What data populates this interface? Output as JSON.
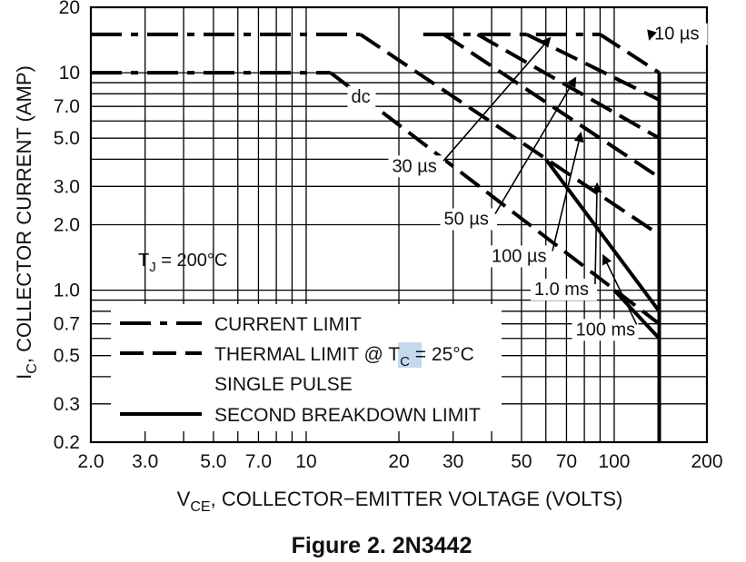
{
  "chart_data": {
    "type": "line",
    "title": "",
    "caption": "Figure 2. 2N3442",
    "xlabel": {
      "main": "V",
      "sub": "CE",
      "rest": ", COLLECTOR−EMITTER VOLTAGE (VOLTS)"
    },
    "ylabel": {
      "main": "I",
      "sub": "C",
      "rest": ", COLLECTOR CURRENT (AMP)"
    },
    "x_scale": "log",
    "y_scale": "log",
    "xlim": [
      2,
      200
    ],
    "ylim": [
      0.2,
      20
    ],
    "x_ticks": [
      {
        "value": 2,
        "label": "2.0"
      },
      {
        "value": 3,
        "label": "3.0"
      },
      {
        "value": 5,
        "label": "5.0"
      },
      {
        "value": 7,
        "label": "7.0"
      },
      {
        "value": 10,
        "label": "10"
      },
      {
        "value": 20,
        "label": "20"
      },
      {
        "value": 30,
        "label": "30"
      },
      {
        "value": 50,
        "label": "50"
      },
      {
        "value": 70,
        "label": "70"
      },
      {
        "value": 100,
        "label": "100"
      },
      {
        "value": 200,
        "label": "200"
      }
    ],
    "y_ticks": [
      {
        "value": 0.2,
        "label": "0.2"
      },
      {
        "value": 0.3,
        "label": "0.3"
      },
      {
        "value": 0.5,
        "label": "0.5"
      },
      {
        "value": 0.7,
        "label": "0.7"
      },
      {
        "value": 1,
        "label": "1.0"
      },
      {
        "value": 2,
        "label": "2.0"
      },
      {
        "value": 3,
        "label": "3.0"
      },
      {
        "value": 5,
        "label": "5.0"
      },
      {
        "value": 7,
        "label": "7.0"
      },
      {
        "value": 10,
        "label": "10"
      },
      {
        "value": 20,
        "label": "20"
      }
    ],
    "grid": true,
    "series": [
      {
        "kind": "current",
        "points": [
          [
            2,
            15
          ],
          [
            15,
            15
          ]
        ]
      },
      {
        "kind": "current",
        "points": [
          [
            2,
            10
          ],
          [
            12,
            10
          ]
        ]
      },
      {
        "kind": "current",
        "points": [
          [
            24,
            15
          ],
          [
            90,
            15
          ]
        ]
      },
      {
        "kind": "thermal",
        "points": [
          [
            15,
            15
          ],
          [
            140,
            1.8
          ]
        ]
      },
      {
        "kind": "thermal",
        "points": [
          [
            12,
            10
          ],
          [
            140,
            0.7
          ]
        ]
      },
      {
        "kind": "thermal",
        "points": [
          [
            28,
            15
          ],
          [
            140,
            3.3
          ]
        ]
      },
      {
        "kind": "thermal",
        "points": [
          [
            36,
            15
          ],
          [
            140,
            5.0
          ]
        ]
      },
      {
        "kind": "thermal",
        "points": [
          [
            52,
            15
          ],
          [
            140,
            7.5
          ]
        ]
      },
      {
        "kind": "thermal",
        "points": [
          [
            90,
            15
          ],
          [
            140,
            10
          ]
        ]
      },
      {
        "kind": "breakdown",
        "points": [
          [
            60,
            4.0
          ],
          [
            140,
            0.8
          ]
        ]
      },
      {
        "kind": "breakdown",
        "points": [
          [
            140,
            10
          ],
          [
            140,
            0.2
          ]
        ]
      },
      {
        "kind": "breakdown",
        "points": [
          [
            100,
            1.0
          ],
          [
            140,
            0.6
          ]
        ]
      }
    ],
    "annotations": [
      {
        "text": "10 µs",
        "at": [
          135,
          14.2
        ],
        "arrow_to": [
          130,
          14.2
        ]
      },
      {
        "text": "dc",
        "at": [
          14,
          7.3
        ],
        "arrow_to": null
      },
      {
        "text": "30 µs",
        "at": [
          19,
          3.5
        ],
        "arrow_to": [
          62,
          14.5
        ]
      },
      {
        "text": "50 µs",
        "at": [
          28,
          2.0
        ],
        "arrow_to": [
          75,
          9.5
        ]
      },
      {
        "text": "100 µs",
        "at": [
          40,
          1.35
        ],
        "arrow_to": [
          78,
          5.3
        ]
      },
      {
        "text": "1.0 ms",
        "at": [
          55,
          0.95
        ],
        "arrow_to": [
          88,
          3.1
        ]
      },
      {
        "text": "100 ms",
        "at": [
          75,
          0.62
        ],
        "arrow_to": [
          92,
          1.45
        ]
      }
    ],
    "tj_label": {
      "main": "T",
      "sub": "J",
      "rest": " = 200°C"
    },
    "legend": [
      {
        "kind": "current",
        "text": "CURRENT LIMIT"
      },
      {
        "kind": "thermal",
        "text": [
          "THERMAL LIMIT @ ",
          "T",
          "C",
          " = 25°C"
        ],
        "line2": "SINGLE PULSE"
      },
      {
        "kind": "breakdown",
        "text": "SECOND BREAKDOWN LIMIT"
      }
    ],
    "colors": {
      "line": "#000000",
      "grid": "#000000",
      "background": "#ffffff",
      "highlight": "#c4d8ee"
    }
  }
}
